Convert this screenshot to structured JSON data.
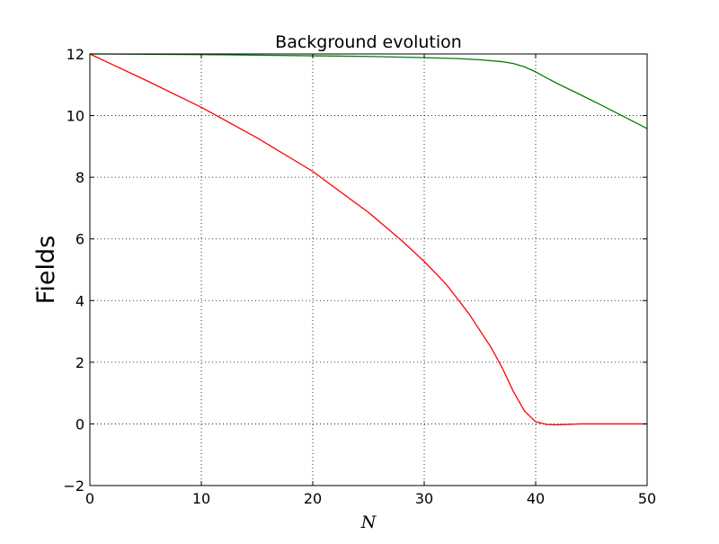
{
  "chart_data": {
    "type": "line",
    "title": "Background evolution",
    "xlabel": "N",
    "ylabel": "Fields",
    "xlim": [
      0,
      50
    ],
    "ylim": [
      -2,
      12
    ],
    "grid": true,
    "x_ticks": [
      "0",
      "10",
      "20",
      "30",
      "40",
      "50"
    ],
    "y_ticks": [
      "−2",
      "0",
      "2",
      "4",
      "6",
      "8",
      "10",
      "12"
    ],
    "series": [
      {
        "color": "#008000",
        "points": [
          [
            0,
            12.0
          ],
          [
            5,
            11.99
          ],
          [
            10,
            11.98
          ],
          [
            15,
            11.96
          ],
          [
            20,
            11.94
          ],
          [
            25,
            11.92
          ],
          [
            30,
            11.88
          ],
          [
            33,
            11.85
          ],
          [
            35,
            11.81
          ],
          [
            37,
            11.75
          ],
          [
            38,
            11.69
          ],
          [
            39,
            11.58
          ],
          [
            40,
            11.42
          ],
          [
            41,
            11.22
          ],
          [
            42,
            11.03
          ],
          [
            44,
            10.68
          ],
          [
            46,
            10.32
          ],
          [
            48,
            9.95
          ],
          [
            50,
            9.58
          ]
        ]
      },
      {
        "color": "#ff0000",
        "points": [
          [
            0,
            12.0
          ],
          [
            5,
            11.15
          ],
          [
            10,
            10.27
          ],
          [
            15,
            9.28
          ],
          [
            20,
            8.19
          ],
          [
            25,
            6.86
          ],
          [
            28,
            5.94
          ],
          [
            30,
            5.27
          ],
          [
            32,
            4.52
          ],
          [
            34,
            3.58
          ],
          [
            36,
            2.48
          ],
          [
            37,
            1.82
          ],
          [
            38,
            1.05
          ],
          [
            39,
            0.42
          ],
          [
            40,
            0.07
          ],
          [
            41,
            -0.02
          ],
          [
            42,
            -0.03
          ],
          [
            44,
            0.0
          ],
          [
            50,
            0.0
          ]
        ]
      }
    ]
  }
}
